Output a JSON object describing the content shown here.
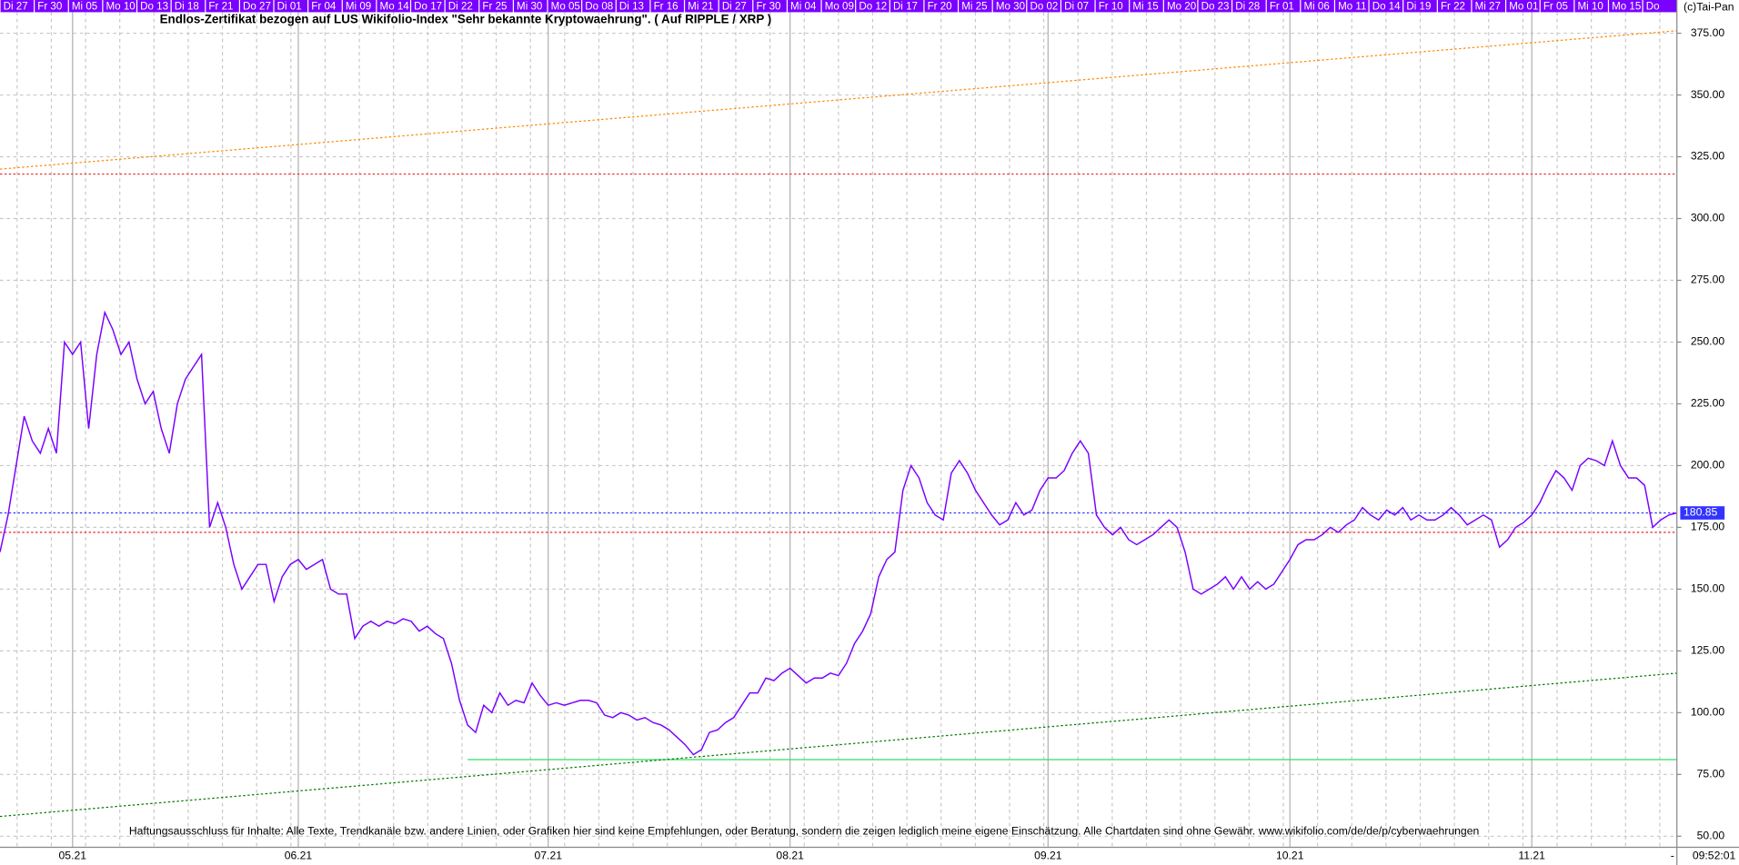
{
  "chart_data": {
    "type": "line",
    "title": "Endlos-Zertifikat bezogen auf LUS Wikifolio-Index \"Sehr bekannte Kryptowaehrung\". ( Auf RIPPLE / XRP )",
    "copyright": "(c)Tai-Pan",
    "disclaimer": "Haftungsausschluss für Inhalte: Alle Texte, Trendkanäle bzw. andere Linien, oder Grafiken hier sind keine Empfehlungen, oder Beratung, sondern die zeigen lediglich meine eigene Einschätzung. Alle Chartdaten sind ohne Gewähr.  www.wikifolio.com/de/de/p/cyberwaehrungen",
    "time": "09:52:01",
    "corner_mark": "-",
    "top_labels": [
      "Di 27",
      "Fr 30",
      "Mi 05",
      "Mo 10",
      "Do 13",
      "Di 18",
      "Fr 21",
      "Do 27",
      "Di 01",
      "Fr 04",
      "Mi 09",
      "Mo 14",
      "Do 17",
      "Di 22",
      "Fr 25",
      "Mi 30",
      "Mo 05",
      "Do 08",
      "Di 13",
      "Fr 16",
      "Mi 21",
      "Di 27",
      "Fr 30",
      "Mi 04",
      "Mo 09",
      "Do 12",
      "Di 17",
      "Fr 20",
      "Mi 25",
      "Mo 30",
      "Do 02",
      "Di 07",
      "Fr 10",
      "Mi 15",
      "Mo 20",
      "Do 23",
      "Di 28",
      "Fr 01",
      "Mi 06",
      "Mo 11",
      "Do 14",
      "Di 19",
      "Fr 22",
      "Mi 27",
      "Mo 01",
      "Fr 05",
      "Mi 10",
      "Mo 15",
      "Do"
    ],
    "xlim": [
      0,
      208
    ],
    "xticks": [
      {
        "value": 9,
        "label": "05.21"
      },
      {
        "value": 37,
        "label": "06.21"
      },
      {
        "value": 68,
        "label": "07.21"
      },
      {
        "value": 98,
        "label": "08.21"
      },
      {
        "value": 130,
        "label": "09.21"
      },
      {
        "value": 160,
        "label": "10.21"
      },
      {
        "value": 190,
        "label": "11.21"
      }
    ],
    "ylim": [
      50,
      375
    ],
    "yticks": [
      {
        "value": 50,
        "label": "50.00"
      },
      {
        "value": 75,
        "label": "75.00"
      },
      {
        "value": 100,
        "label": "100.00"
      },
      {
        "value": 125,
        "label": "125.00"
      },
      {
        "value": 150,
        "label": "150.00"
      },
      {
        "value": 175,
        "label": "175.00"
      },
      {
        "value": 200,
        "label": "200.00"
      },
      {
        "value": 225,
        "label": "225.00"
      },
      {
        "value": 250,
        "label": "250.00"
      },
      {
        "value": 275,
        "label": "275.00"
      },
      {
        "value": 300,
        "label": "300.00"
      },
      {
        "value": 325,
        "label": "325.00"
      },
      {
        "value": 350,
        "label": "350.00"
      },
      {
        "value": 375,
        "label": "375.00"
      }
    ],
    "grid": true,
    "hlines": [
      {
        "value": 180.85,
        "color": "#3333ff"
      },
      {
        "value": 318,
        "color": "#ee2222"
      },
      {
        "value": 173,
        "color": "#ee2222"
      }
    ],
    "segments": [
      {
        "x": [
          58,
          208
        ],
        "values": [
          81,
          81
        ],
        "color": "#33dd66"
      }
    ],
    "trendlines": [
      {
        "x": [
          0,
          208
        ],
        "values": [
          320,
          376
        ],
        "color": "#ff8800"
      },
      {
        "x": [
          0,
          208
        ],
        "values": [
          58,
          116
        ],
        "color": "#007700"
      }
    ],
    "series": [
      {
        "color": "#7a00ff",
        "x": [
          0,
          1,
          2,
          3,
          4,
          5,
          6,
          7,
          8,
          9,
          10,
          11,
          12,
          13,
          14,
          15,
          16,
          17,
          18,
          19,
          20,
          21,
          22,
          23,
          24,
          25,
          26,
          27,
          28,
          29,
          30,
          31,
          32,
          33,
          34,
          35,
          36,
          37,
          38,
          39,
          40,
          41,
          42,
          43,
          44,
          45,
          46,
          47,
          48,
          49,
          50,
          51,
          52,
          53,
          54,
          55,
          56,
          57,
          58,
          59,
          60,
          61,
          62,
          63,
          64,
          65,
          66,
          67,
          68,
          69,
          70,
          71,
          72,
          73,
          74,
          75,
          76,
          77,
          78,
          79,
          80,
          81,
          82,
          83,
          84,
          85,
          86,
          87,
          88,
          89,
          90,
          91,
          92,
          93,
          94,
          95,
          96,
          97,
          98,
          99,
          100,
          101,
          102,
          103,
          104,
          105,
          106,
          107,
          108,
          109,
          110,
          111,
          112,
          113,
          114,
          115,
          116,
          117,
          118,
          119,
          120,
          121,
          122,
          123,
          124,
          125,
          126,
          127,
          128,
          129,
          130,
          131,
          132,
          133,
          134,
          135,
          136,
          137,
          138,
          139,
          140,
          141,
          142,
          143,
          144,
          145,
          146,
          147,
          148,
          149,
          150,
          151,
          152,
          153,
          154,
          155,
          156,
          157,
          158,
          159,
          160,
          161,
          162,
          163,
          164,
          165,
          166,
          167,
          168,
          169,
          170,
          171,
          172,
          173,
          174,
          175,
          176,
          177,
          178,
          179,
          180,
          181,
          182,
          183,
          184,
          185,
          186,
          187,
          188,
          189,
          190,
          191,
          192,
          193,
          194,
          195,
          196,
          197,
          198,
          199,
          200,
          201,
          202,
          203,
          204,
          205,
          206,
          207,
          208
        ],
        "values": [
          165,
          180,
          200,
          220,
          210,
          205,
          215,
          205,
          250,
          245,
          250,
          215,
          245,
          262,
          255,
          245,
          250,
          235,
          225,
          230,
          215,
          205,
          225,
          235,
          240,
          245,
          175,
          185,
          175,
          160,
          150,
          155,
          160,
          160,
          145,
          155,
          160,
          162,
          158,
          160,
          162,
          150,
          148,
          148,
          130,
          135,
          137,
          135,
          137,
          136,
          138,
          137,
          133,
          135,
          132,
          130,
          120,
          105,
          95,
          92,
          103,
          100,
          108,
          103,
          105,
          104,
          112,
          107,
          103,
          104,
          103,
          104,
          105,
          105,
          104,
          99,
          98,
          100,
          99,
          97,
          98,
          96,
          95,
          93,
          90,
          87,
          83,
          85,
          92,
          93,
          96,
          98,
          103,
          108,
          108,
          114,
          113,
          116,
          118,
          115,
          112,
          114,
          114,
          116,
          115,
          120,
          128,
          133,
          140,
          155,
          162,
          165,
          190,
          200,
          195,
          185,
          180,
          178,
          197,
          202,
          197,
          190,
          185,
          180,
          176,
          178,
          185,
          180,
          182,
          190,
          195,
          195,
          198,
          205,
          210,
          205,
          180,
          175,
          172,
          175,
          170,
          168,
          170,
          172,
          175,
          178,
          175,
          165,
          150,
          148,
          150,
          152,
          155,
          150,
          155,
          150,
          153,
          150,
          152,
          157,
          162,
          168,
          170,
          170,
          172,
          175,
          173,
          176,
          178,
          183,
          180,
          178,
          182,
          180,
          183,
          178,
          180,
          178,
          178,
          180,
          183,
          180,
          176,
          178,
          180,
          178,
          167,
          170,
          175,
          177,
          180,
          185,
          192,
          198,
          195,
          190,
          200,
          203,
          202,
          200,
          210,
          200,
          195,
          195,
          192,
          175,
          178,
          180,
          180.85
        ]
      }
    ]
  }
}
